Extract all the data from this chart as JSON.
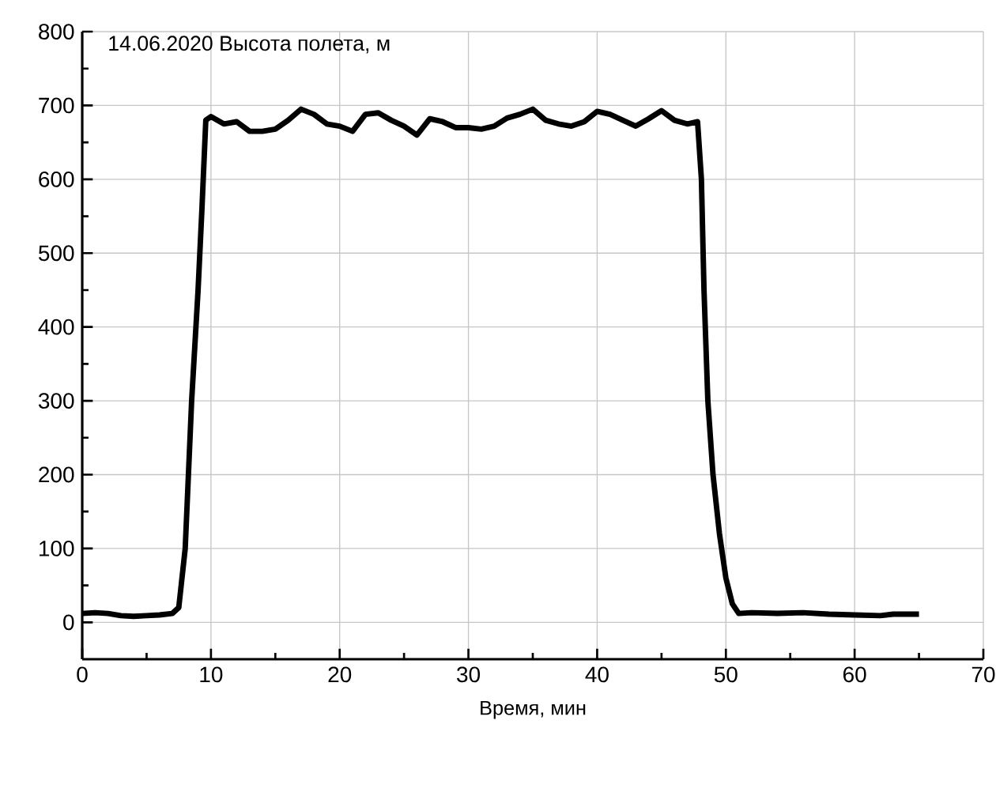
{
  "chart_data": {
    "type": "line",
    "title": "14.06.2020 Высота полета, м",
    "xlabel": "Время, мин",
    "series": [
      {
        "color": "#000000",
        "x": [
          0,
          1,
          2,
          3,
          4,
          5,
          6,
          7,
          7.5,
          8,
          8.5,
          9,
          9.3,
          9.6,
          10,
          11,
          12,
          13,
          14,
          15,
          16,
          17,
          18,
          19,
          20,
          21,
          22,
          23,
          24,
          25,
          26,
          27,
          28,
          29,
          30,
          31,
          32,
          33,
          34,
          35,
          36,
          37,
          38,
          39,
          40,
          41,
          42,
          43,
          44,
          45,
          46,
          47,
          47.8,
          48.1,
          48.3,
          48.6,
          49,
          49.5,
          50,
          50.5,
          51,
          52,
          54,
          56,
          58,
          60,
          62,
          63,
          65
        ],
        "values": [
          12,
          13,
          12,
          9,
          8,
          9,
          10,
          12,
          20,
          100,
          300,
          450,
          560,
          680,
          685,
          675,
          678,
          665,
          665,
          668,
          680,
          695,
          688,
          675,
          672,
          665,
          688,
          690,
          680,
          672,
          660,
          682,
          678,
          670,
          670,
          668,
          672,
          683,
          688,
          695,
          680,
          675,
          672,
          678,
          692,
          688,
          680,
          672,
          682,
          693,
          680,
          675,
          678,
          600,
          450,
          300,
          200,
          120,
          60,
          25,
          12,
          13,
          12,
          13,
          11,
          10,
          9,
          11,
          11
        ]
      }
    ],
    "xlim": [
      0,
      70
    ],
    "xticks": [
      0,
      10,
      20,
      30,
      40,
      50,
      60,
      70
    ],
    "ylim": [
      -50,
      800
    ],
    "yticks": [
      0,
      100,
      200,
      300,
      400,
      500,
      600,
      700,
      800
    ],
    "grid": true,
    "marker": "none",
    "line_style": "solid"
  }
}
